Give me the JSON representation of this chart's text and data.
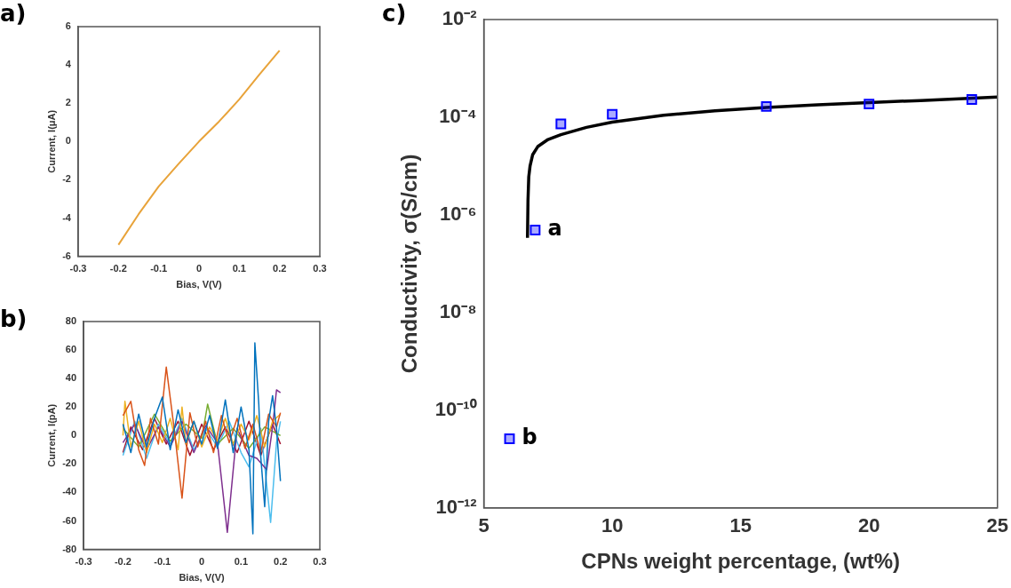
{
  "chart_data": [
    {
      "type": "line",
      "title": "a)",
      "xlabel": "Bias, V(V)",
      "ylabel": "Current, I(μA)",
      "xlim": [
        -0.3,
        0.3
      ],
      "xticks": [
        -0.3,
        -0.2,
        -0.1,
        0,
        0.1,
        0.2,
        0.3
      ],
      "ylim": [
        -6,
        6
      ],
      "yticks": [
        -6,
        -4,
        -2,
        0,
        2,
        4,
        6
      ],
      "grid": false,
      "legend": false,
      "marker": "none",
      "x": [
        -0.2,
        -0.15,
        -0.1,
        -0.05,
        0,
        0.05,
        0.1,
        0.15,
        0.2
      ],
      "series": [
        {
          "color": "#e8a33a",
          "values": [
            -5.4,
            -3.8,
            -2.35,
            -1.15,
            0,
            1.05,
            2.2,
            3.5,
            4.75
          ]
        }
      ]
    },
    {
      "type": "line",
      "title": "b)",
      "xlabel": "Bias, V(V)",
      "ylabel": "Current, I(pA)",
      "xlim": [
        -0.3,
        0.3
      ],
      "xticks": [
        -0.3,
        -0.2,
        -0.1,
        0,
        0.1,
        0.2,
        0.3
      ],
      "ylim": [
        -80,
        80
      ],
      "yticks": [
        -80,
        -60,
        -40,
        -20,
        0,
        20,
        40,
        60,
        80
      ],
      "grid": false,
      "legend": false,
      "marker": "none",
      "series": [
        {
          "color": "#0072bd",
          "x": [
            -0.2,
            -0.18,
            -0.16,
            -0.14,
            -0.12,
            -0.1,
            -0.08,
            -0.06,
            -0.04,
            -0.02,
            0,
            0.02,
            0.04,
            0.06,
            0.08,
            0.1,
            0.12,
            0.13,
            0.135,
            0.145,
            0.15,
            0.16,
            0.17,
            0.18,
            0.19,
            0.2
          ],
          "values": [
            8,
            -12,
            15,
            -8,
            12,
            27,
            -10,
            18,
            -5,
            10,
            -6,
            14,
            -9,
            25,
            -12,
            20,
            -10,
            -69,
            65,
            22,
            -15,
            -50,
            10,
            28,
            5,
            -32
          ]
        },
        {
          "color": "#d95319",
          "x": [
            -0.2,
            -0.18,
            -0.16,
            -0.145,
            -0.13,
            -0.11,
            -0.09,
            -0.07,
            -0.05,
            -0.03,
            -0.01,
            0.01,
            0.03,
            0.05,
            0.07,
            0.09,
            0.11,
            0.13,
            0.15,
            0.17,
            0.19,
            0.2
          ],
          "values": [
            14,
            24,
            -10,
            -21,
            12,
            -6,
            48,
            5,
            -44,
            16,
            -8,
            10,
            -12,
            14,
            -5,
            12,
            -9,
            8,
            -12,
            15,
            6,
            16
          ]
        },
        {
          "color": "#edb120",
          "x": [
            -0.2,
            -0.195,
            -0.18,
            -0.16,
            -0.14,
            -0.12,
            -0.1,
            -0.08,
            -0.06,
            -0.05,
            -0.04,
            -0.02,
            0,
            0.02,
            0.04,
            0.06,
            0.08,
            0.1,
            0.12,
            0.14,
            0.16,
            0.18,
            0.2
          ],
          "values": [
            0,
            24,
            -8,
            10,
            -12,
            8,
            -5,
            12,
            -10,
            20,
            -6,
            10,
            -8,
            6,
            -4,
            12,
            -6,
            8,
            -3,
            14,
            -8,
            10,
            15
          ]
        },
        {
          "color": "#7e2f8e",
          "x": [
            -0.2,
            -0.17,
            -0.14,
            -0.11,
            -0.08,
            -0.05,
            -0.02,
            0.01,
            0.04,
            0.065,
            0.09,
            0.12,
            0.14,
            0.165,
            0.18,
            0.19,
            0.2
          ],
          "values": [
            -5,
            8,
            -10,
            6,
            -8,
            10,
            -12,
            7,
            -5,
            -68,
            5,
            -14,
            -16,
            -24,
            6,
            32,
            30
          ]
        },
        {
          "color": "#77ac30",
          "x": [
            -0.2,
            -0.16,
            -0.12,
            -0.08,
            -0.04,
            0,
            0.015,
            0.04,
            0.08,
            0.12,
            0.16,
            0.2
          ],
          "values": [
            5,
            -8,
            15,
            -4,
            8,
            -2,
            22,
            -6,
            5,
            -9,
            6,
            0
          ]
        },
        {
          "color": "#4dbeee",
          "x": [
            -0.2,
            -0.17,
            -0.14,
            -0.11,
            -0.08,
            -0.05,
            -0.02,
            0.01,
            0.04,
            0.07,
            0.1,
            0.12,
            0.15,
            0.175,
            0.19,
            0.2
          ],
          "values": [
            -14,
            10,
            -16,
            8,
            -6,
            12,
            -10,
            5,
            -8,
            10,
            -12,
            -22,
            5,
            -61,
            -5,
            10
          ]
        },
        {
          "color": "#a2142f",
          "x": [
            -0.2,
            -0.18,
            -0.15,
            -0.12,
            -0.09,
            -0.06,
            -0.03,
            0,
            0.03,
            0.06,
            0.09,
            0.12,
            0.15,
            0.18,
            0.2
          ],
          "values": [
            -12,
            6,
            -10,
            12,
            -6,
            10,
            -14,
            8,
            -10,
            6,
            -12,
            10,
            -14,
            8,
            -6
          ]
        }
      ]
    },
    {
      "type": "scatter",
      "title": "c)",
      "xlabel": "CPNs weight percentage, (wt%)",
      "ylabel": "Conductivity, σ(S/cm)",
      "log": "y",
      "xlim": [
        5,
        25
      ],
      "xticks": [
        5,
        10,
        15,
        20,
        25
      ],
      "ylim": [
        1e-12,
        0.01
      ],
      "yticks": [
        {
          "value": 1e-12,
          "label": "10⁻¹²"
        },
        {
          "value": 1e-10,
          "label": "10⁻¹⁰"
        },
        {
          "value": 1e-08,
          "label": "10⁻⁸"
        },
        {
          "value": 1e-06,
          "label": "10⁻⁶"
        },
        {
          "value": 0.0001,
          "label": "10⁻⁴"
        },
        {
          "value": 0.01,
          "label": "10⁻²"
        }
      ],
      "grid": false,
      "legend": false,
      "marker": "square",
      "series": [
        {
          "type": "line",
          "marker": "none",
          "color": "#000000",
          "x": [
            6.7,
            6.72,
            6.75,
            6.8,
            6.9,
            7.1,
            7.5,
            8,
            9,
            10,
            12,
            14,
            16,
            18,
            20,
            22,
            25
          ],
          "values": [
            3.4e-07,
            2e-06,
            6e-06,
            1e-05,
            1.7e-05,
            2.5e-05,
            3.5e-05,
            4.4e-05,
            6.2e-05,
            7.9e-05,
            0.00011,
            0.000135,
            0.000158,
            0.00018,
            0.0002,
            0.00022,
            0.00026
          ]
        },
        {
          "color": "#0000ff",
          "x": [
            6,
            7,
            8,
            10,
            16,
            20,
            24
          ],
          "values": [
            2.6e-11,
            4.9e-07,
            7.3e-05,
            0.000115,
            0.000166,
            0.000186,
            0.00023
          ]
        }
      ],
      "annotations": [
        {
          "text": "a",
          "x": 7,
          "y": 4.9e-07
        },
        {
          "text": "b",
          "x": 6,
          "y": 2.6e-11
        }
      ]
    }
  ]
}
